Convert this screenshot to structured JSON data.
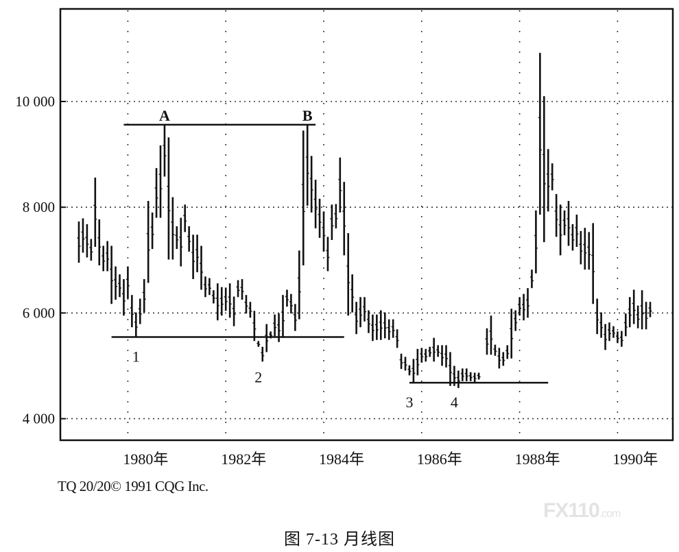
{
  "chart_data": {
    "type": "bar",
    "subtype": "monthly high-low bars",
    "title": "",
    "xlabel": "",
    "ylabel": "",
    "ylim": [
      3580,
      11750
    ],
    "y_ticks": [
      {
        "value": 4000,
        "label": "4 000"
      },
      {
        "value": 6000,
        "label": "6 000"
      },
      {
        "value": 8000,
        "label": "8 000"
      },
      {
        "value": 10000,
        "label": "10 000"
      }
    ],
    "x_ticks": [
      {
        "year": 1980,
        "label": "1980年"
      },
      {
        "year": 1982,
        "label": "1982年"
      },
      {
        "year": 1984,
        "label": "1984年"
      },
      {
        "year": 1986,
        "label": "1986年"
      },
      {
        "year": 1988,
        "label": "1988年"
      },
      {
        "year": 1990,
        "label": "1990年"
      }
    ],
    "grid": {
      "horizontal": true,
      "vertical": true,
      "style": "dotted"
    },
    "bar_color": "#111111",
    "bars_by_year": [
      {
        "year": 1979,
        "high_low": [
          [
            7730,
            6950
          ],
          [
            7790,
            7140
          ],
          [
            7680,
            7050
          ],
          [
            7400,
            6990
          ],
          [
            8560,
            7250
          ],
          [
            7770,
            6900
          ],
          [
            7270,
            6790
          ],
          [
            7360,
            6790
          ],
          [
            7270,
            6170
          ],
          [
            6880,
            6250
          ],
          [
            6730,
            6300
          ],
          [
            6640,
            5950
          ]
        ]
      },
      {
        "year": 1980,
        "high_low": [
          [
            6880,
            6270
          ],
          [
            6340,
            5730
          ],
          [
            6010,
            5550
          ],
          [
            6270,
            5790
          ],
          [
            6640,
            6010
          ],
          [
            8120,
            6570
          ],
          [
            7900,
            7210
          ],
          [
            8740,
            7800
          ],
          [
            9170,
            7800
          ],
          [
            9560,
            8580
          ],
          [
            9320,
            7010
          ],
          [
            8190,
            7010
          ]
        ]
      },
      {
        "year": 1981,
        "high_low": [
          [
            7640,
            7210
          ],
          [
            7800,
            6880
          ],
          [
            8050,
            7530
          ],
          [
            7640,
            7160
          ],
          [
            7480,
            6640
          ],
          [
            7480,
            6770
          ],
          [
            7270,
            6440
          ],
          [
            6690,
            6300
          ],
          [
            6660,
            6340
          ],
          [
            6430,
            6180
          ],
          [
            6560,
            5860
          ],
          [
            6490,
            5950
          ]
        ]
      },
      {
        "year": 1982,
        "high_low": [
          [
            6480,
            6040
          ],
          [
            6560,
            5910
          ],
          [
            6310,
            5750
          ],
          [
            6620,
            6300
          ],
          [
            6640,
            6250
          ],
          [
            6340,
            5990
          ],
          [
            6210,
            5910
          ],
          [
            6040,
            5470
          ],
          [
            5470,
            5360
          ],
          [
            5360,
            5080
          ],
          [
            5790,
            5260
          ],
          [
            5650,
            5520
          ]
        ]
      },
      {
        "year": 1983,
        "high_low": [
          [
            5970,
            5560
          ],
          [
            5990,
            5450
          ],
          [
            6340,
            5530
          ],
          [
            6440,
            6120
          ],
          [
            6360,
            5990
          ],
          [
            6170,
            5660
          ],
          [
            7180,
            5880
          ],
          [
            9450,
            6900
          ],
          [
            9560,
            8030
          ],
          [
            8970,
            7900
          ],
          [
            8520,
            7600
          ],
          [
            8160,
            7420
          ]
        ]
      },
      {
        "year": 1984,
        "high_low": [
          [
            7920,
            7160
          ],
          [
            7440,
            6790
          ],
          [
            8050,
            7380
          ],
          [
            8060,
            7600
          ],
          [
            8940,
            7900
          ],
          [
            8480,
            7090
          ],
          [
            7510,
            5950
          ],
          [
            6730,
            6010
          ],
          [
            6210,
            5600
          ],
          [
            6300,
            5730
          ],
          [
            6300,
            5840
          ],
          [
            6050,
            5620
          ]
        ]
      },
      {
        "year": 1985,
        "high_low": [
          [
            5970,
            5470
          ],
          [
            5970,
            5490
          ],
          [
            6050,
            5490
          ],
          [
            6010,
            5520
          ],
          [
            5880,
            5490
          ],
          [
            5880,
            5530
          ],
          [
            5690,
            5340
          ],
          [
            5230,
            4940
          ],
          [
            5170,
            4910
          ],
          [
            5010,
            4820
          ],
          [
            5130,
            4680
          ],
          [
            5320,
            4820
          ]
        ]
      },
      {
        "year": 1986,
        "high_low": [
          [
            5340,
            5060
          ],
          [
            5320,
            5080
          ],
          [
            5360,
            5170
          ],
          [
            5530,
            5080
          ],
          [
            5390,
            5170
          ],
          [
            5390,
            5000
          ],
          [
            5390,
            4970
          ],
          [
            5260,
            4620
          ],
          [
            5000,
            4620
          ],
          [
            4910,
            4580
          ],
          [
            4950,
            4710
          ],
          [
            4950,
            4710
          ]
        ]
      },
      {
        "year": 1987,
        "high_low": [
          [
            4880,
            4710
          ],
          [
            4870,
            4690
          ],
          [
            4870,
            4740
          ],
          null,
          [
            5710,
            5210
          ],
          [
            5950,
            5210
          ],
          [
            5400,
            5190
          ],
          [
            5340,
            4950
          ],
          [
            5260,
            5000
          ],
          [
            5390,
            5130
          ],
          [
            6080,
            5140
          ],
          [
            6050,
            5660
          ]
        ]
      },
      {
        "year": 1988,
        "high_low": [
          [
            6300,
            5950
          ],
          [
            6360,
            5860
          ],
          [
            6470,
            5910
          ],
          [
            6820,
            6470
          ],
          [
            7940,
            6750
          ],
          [
            10920,
            7860
          ],
          [
            10100,
            7340
          ],
          [
            9100,
            7920
          ],
          [
            8830,
            8320
          ],
          [
            8250,
            7440
          ],
          [
            8050,
            7090
          ],
          [
            7940,
            7470
          ]
        ]
      },
      {
        "year": 1989,
        "high_low": [
          [
            8120,
            7270
          ],
          [
            7680,
            7180
          ],
          [
            7860,
            7250
          ],
          [
            7550,
            6920
          ],
          [
            7610,
            6820
          ],
          [
            7530,
            6820
          ],
          [
            7700,
            6170
          ],
          [
            6270,
            5600
          ],
          [
            6010,
            5530
          ],
          [
            5790,
            5300
          ],
          [
            5820,
            5470
          ],
          [
            5750,
            5530
          ]
        ]
      },
      {
        "year": 1990,
        "high_low": [
          [
            5650,
            5430
          ],
          [
            5660,
            5360
          ],
          [
            5990,
            5560
          ],
          [
            6300,
            5730
          ],
          [
            6440,
            5790
          ],
          [
            6140,
            5710
          ],
          [
            6430,
            5690
          ],
          [
            6210,
            5690
          ],
          [
            6210,
            5920
          ]
        ]
      }
    ],
    "trend_lines": [
      {
        "from": "1979-12",
        "to": "1983-11",
        "price": 9560
      },
      {
        "from": "1979-09",
        "to": "1984-06",
        "price": 5545
      },
      {
        "from": "1985-10",
        "to": "1988-08",
        "price": 4680
      }
    ],
    "annotations": [
      {
        "text": "A",
        "date": "1980-10",
        "price": 9560,
        "position": "above"
      },
      {
        "text": "B",
        "date": "1983-09",
        "price": 9560,
        "position": "above"
      },
      {
        "text": "1",
        "date": "1980-03",
        "price": 5545,
        "position": "below"
      },
      {
        "text": "2",
        "date": "1982-09",
        "price": 5545,
        "position": "below-far"
      },
      {
        "text": "3",
        "date": "1985-10",
        "price": 4680,
        "position": "below"
      },
      {
        "text": "4",
        "date": "1986-09",
        "price": 4680,
        "position": "below"
      }
    ]
  },
  "credit": "TQ 20/20© 1991 CQG Inc.",
  "caption": "图 7-13    月线图",
  "watermark": {
    "main": "FX110",
    "suffix": ".com"
  }
}
